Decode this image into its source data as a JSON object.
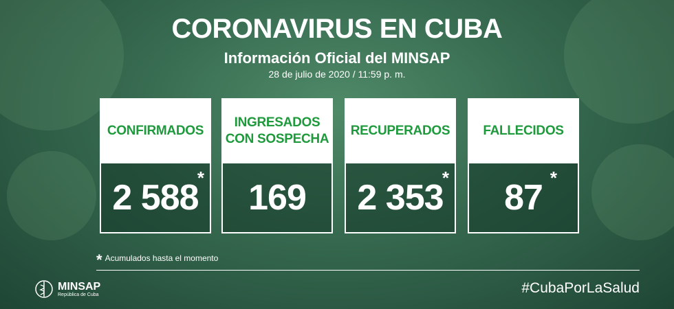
{
  "header": {
    "title": "CORONAVIRUS EN CUBA",
    "subtitle": "Información Oficial del MINSAP",
    "date": "28 de julio de 2020 / 11:59 p. m."
  },
  "cards": [
    {
      "label": [
        "CONFIRMADOS"
      ],
      "value": "2 588",
      "mark": "*"
    },
    {
      "label": [
        "INGRESADOS",
        "CON SOSPECHA"
      ],
      "value": "169"
    },
    {
      "label": [
        "RECUPERADOS"
      ],
      "value": "2 353",
      "mark": "*"
    },
    {
      "label": [
        "FALLECIDOS"
      ],
      "value": "87",
      "mark": "*"
    }
  ],
  "footnote": {
    "mark": "*",
    "text": "Acumulados hasta el momento"
  },
  "footer": {
    "logo": "MINSAP",
    "logo_sub": "República de Cuba",
    "hashtag": "#CubaPorLaSalud"
  }
}
